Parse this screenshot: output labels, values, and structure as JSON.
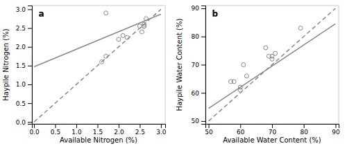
{
  "chart_data": [
    {
      "type": "scatter",
      "title": "a",
      "xlabel": "Available Nitrogen (%)",
      "ylabel": "Haypile Nitrogen (%)",
      "xlim": [
        -0.05,
        3.1
      ],
      "ylim": [
        -0.05,
        3.1
      ],
      "xticks": [
        {
          "value": 0.0,
          "label": "0.0"
        },
        0.5,
        {
          "value": 1.0,
          "label": "1.0"
        },
        1.5,
        {
          "value": 2.0,
          "label": "2.0"
        },
        2.5,
        {
          "value": 3.0,
          "label": "3.0"
        }
      ],
      "yticks": [
        {
          "value": 0.0,
          "label": "0.0"
        },
        0.5,
        {
          "value": 1.0,
          "label": "1.0"
        },
        1.5,
        {
          "value": 2.0,
          "label": "2.0"
        },
        2.5,
        {
          "value": 3.0,
          "label": "3.0"
        }
      ],
      "grid": false,
      "series": [
        {
          "type": "line",
          "line_style": "dashed",
          "color": "#888888",
          "x": [
            0.0,
            3.0
          ],
          "values": [
            0.0,
            3.0
          ]
        },
        {
          "type": "line",
          "line_style": "solid",
          "color": "#888888",
          "x": [
            0.0,
            3.0
          ],
          "values": [
            1.47,
            2.87
          ]
        },
        {
          "type": "scatter",
          "marker": "open-circle",
          "color": "#888888",
          "x": [
            1.6,
            1.7,
            1.7,
            2.0,
            2.1,
            2.2,
            2.5,
            2.55,
            2.6,
            2.6,
            2.6,
            2.65
          ],
          "values": [
            1.6,
            1.75,
            2.9,
            2.2,
            2.3,
            2.25,
            2.55,
            2.4,
            2.55,
            2.6,
            2.55,
            2.75
          ]
        }
      ]
    },
    {
      "type": "scatter",
      "title": "b",
      "xlabel": "Available Water Content (%)",
      "ylabel": "Haypile Water Content (%)",
      "xlim": [
        49,
        91
      ],
      "ylim": [
        49,
        91
      ],
      "xticks": [
        50,
        60,
        70,
        80,
        90
      ],
      "yticks": [
        50,
        60,
        70,
        80,
        90
      ],
      "grid": false,
      "series": [
        {
          "type": "line",
          "line_style": "dashed",
          "color": "#888888",
          "x": [
            50,
            90
          ],
          "values": [
            50,
            90
          ]
        },
        {
          "type": "line",
          "line_style": "solid",
          "color": "#888888",
          "x": [
            50,
            90
          ],
          "values": [
            54.5,
            84.5
          ]
        },
        {
          "type": "scatter",
          "marker": "open-circle",
          "color": "#888888",
          "x": [
            57,
            58,
            60,
            60,
            61,
            62,
            68,
            69,
            70,
            70,
            71,
            79
          ],
          "values": [
            64,
            64,
            61,
            62,
            70,
            66,
            76,
            73,
            73,
            72,
            74,
            83
          ]
        }
      ]
    }
  ]
}
